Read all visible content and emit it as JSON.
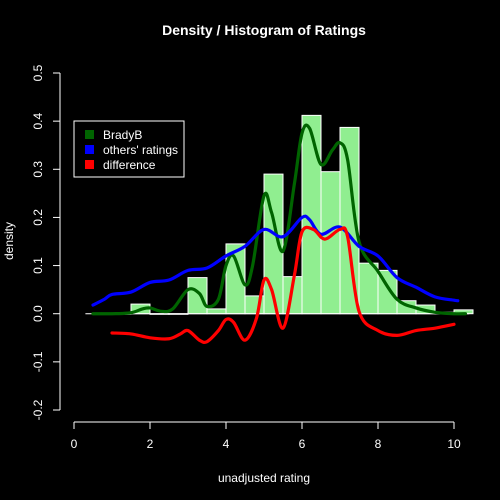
{
  "chart_data": {
    "type": "bar",
    "title": "Density / Histogram of Ratings",
    "xlabel": "unadjusted rating",
    "ylabel": "density",
    "xlim": [
      0,
      10
    ],
    "ylim": [
      -0.2,
      0.5
    ],
    "x_ticks": [
      "0",
      "2",
      "4",
      "6",
      "8",
      "10"
    ],
    "y_ticks": [
      "-0.2",
      "-0.1",
      "0.0",
      "0.1",
      "0.2",
      "0.3",
      "0.4",
      "0.5"
    ],
    "x_tick_values": [
      0,
      2,
      4,
      6,
      8,
      10
    ],
    "y_tick_values": [
      -0.2,
      -0.1,
      0.0,
      0.1,
      0.2,
      0.3,
      0.4,
      0.5
    ],
    "grid": false,
    "legend_position": "top-left",
    "histogram": {
      "color": "#90EE90",
      "bins": [
        {
          "from": 0.5,
          "to": 1.0,
          "density": 0.0
        },
        {
          "from": 1.0,
          "to": 1.5,
          "density": 0.0
        },
        {
          "from": 1.5,
          "to": 2.0,
          "density": 0.02
        },
        {
          "from": 2.0,
          "to": 2.5,
          "density": 0.0
        },
        {
          "from": 2.5,
          "to": 3.0,
          "density": 0.0
        },
        {
          "from": 3.0,
          "to": 3.5,
          "density": 0.075
        },
        {
          "from": 3.5,
          "to": 4.0,
          "density": 0.01
        },
        {
          "from": 4.0,
          "to": 4.5,
          "density": 0.145
        },
        {
          "from": 4.5,
          "to": 5.0,
          "density": 0.037
        },
        {
          "from": 5.0,
          "to": 5.5,
          "density": 0.29
        },
        {
          "from": 5.5,
          "to": 6.0,
          "density": 0.077
        },
        {
          "from": 6.0,
          "to": 6.5,
          "density": 0.412
        },
        {
          "from": 6.5,
          "to": 7.0,
          "density": 0.295
        },
        {
          "from": 7.0,
          "to": 7.5,
          "density": 0.387
        },
        {
          "from": 7.5,
          "to": 8.0,
          "density": 0.105
        },
        {
          "from": 8.0,
          "to": 8.5,
          "density": 0.09
        },
        {
          "from": 8.5,
          "to": 9.0,
          "density": 0.027
        },
        {
          "from": 9.0,
          "to": 9.5,
          "density": 0.018
        },
        {
          "from": 9.5,
          "to": 10.0,
          "density": 0.003
        },
        {
          "from": 10.0,
          "to": 10.5,
          "density": 0.008
        }
      ]
    },
    "series": [
      {
        "name": "BradyB",
        "color": "#006400",
        "points": [
          [
            0.5,
            0.0
          ],
          [
            1.0,
            0.0
          ],
          [
            1.5,
            0.002
          ],
          [
            1.8,
            0.01
          ],
          [
            2.0,
            0.012
          ],
          [
            2.3,
            0.005
          ],
          [
            2.6,
            0.01
          ],
          [
            3.0,
            0.05
          ],
          [
            3.3,
            0.042
          ],
          [
            3.5,
            0.015
          ],
          [
            3.8,
            0.03
          ],
          [
            4.0,
            0.1
          ],
          [
            4.2,
            0.12
          ],
          [
            4.5,
            0.06
          ],
          [
            4.7,
            0.1
          ],
          [
            5.0,
            0.245
          ],
          [
            5.2,
            0.21
          ],
          [
            5.5,
            0.13
          ],
          [
            5.8,
            0.27
          ],
          [
            6.0,
            0.375
          ],
          [
            6.2,
            0.385
          ],
          [
            6.5,
            0.31
          ],
          [
            6.8,
            0.34
          ],
          [
            7.0,
            0.355
          ],
          [
            7.2,
            0.32
          ],
          [
            7.5,
            0.15
          ],
          [
            8.0,
            0.088
          ],
          [
            8.5,
            0.03
          ],
          [
            9.0,
            0.012
          ],
          [
            9.5,
            0.003
          ],
          [
            10.0,
            0.0
          ],
          [
            10.3,
            0.0
          ]
        ]
      },
      {
        "name": "others' ratings",
        "color": "#0000FF",
        "points": [
          [
            0.5,
            0.018
          ],
          [
            0.8,
            0.03
          ],
          [
            1.0,
            0.04
          ],
          [
            1.5,
            0.045
          ],
          [
            2.0,
            0.065
          ],
          [
            2.5,
            0.07
          ],
          [
            3.0,
            0.09
          ],
          [
            3.5,
            0.095
          ],
          [
            4.0,
            0.12
          ],
          [
            4.5,
            0.14
          ],
          [
            5.0,
            0.175
          ],
          [
            5.5,
            0.16
          ],
          [
            6.0,
            0.2
          ],
          [
            6.2,
            0.195
          ],
          [
            6.5,
            0.165
          ],
          [
            7.0,
            0.18
          ],
          [
            7.5,
            0.14
          ],
          [
            8.0,
            0.12
          ],
          [
            8.5,
            0.075
          ],
          [
            9.0,
            0.055
          ],
          [
            9.5,
            0.035
          ],
          [
            10.0,
            0.028
          ],
          [
            10.1,
            0.027
          ]
        ]
      },
      {
        "name": "difference",
        "color": "#FF0000",
        "points": [
          [
            1.0,
            -0.04
          ],
          [
            1.5,
            -0.042
          ],
          [
            2.0,
            -0.05
          ],
          [
            2.5,
            -0.052
          ],
          [
            2.8,
            -0.042
          ],
          [
            3.0,
            -0.035
          ],
          [
            3.3,
            -0.055
          ],
          [
            3.5,
            -0.058
          ],
          [
            3.8,
            -0.035
          ],
          [
            4.0,
            -0.012
          ],
          [
            4.2,
            -0.018
          ],
          [
            4.5,
            -0.055
          ],
          [
            4.8,
            -0.01
          ],
          [
            5.0,
            0.07
          ],
          [
            5.2,
            0.05
          ],
          [
            5.5,
            -0.03
          ],
          [
            5.8,
            0.08
          ],
          [
            6.0,
            0.17
          ],
          [
            6.3,
            0.175
          ],
          [
            6.6,
            0.155
          ],
          [
            7.0,
            0.175
          ],
          [
            7.2,
            0.16
          ],
          [
            7.5,
            0.005
          ],
          [
            8.0,
            -0.035
          ],
          [
            8.5,
            -0.045
          ],
          [
            9.0,
            -0.035
          ],
          [
            9.5,
            -0.03
          ],
          [
            10.0,
            -0.022
          ]
        ]
      }
    ]
  }
}
